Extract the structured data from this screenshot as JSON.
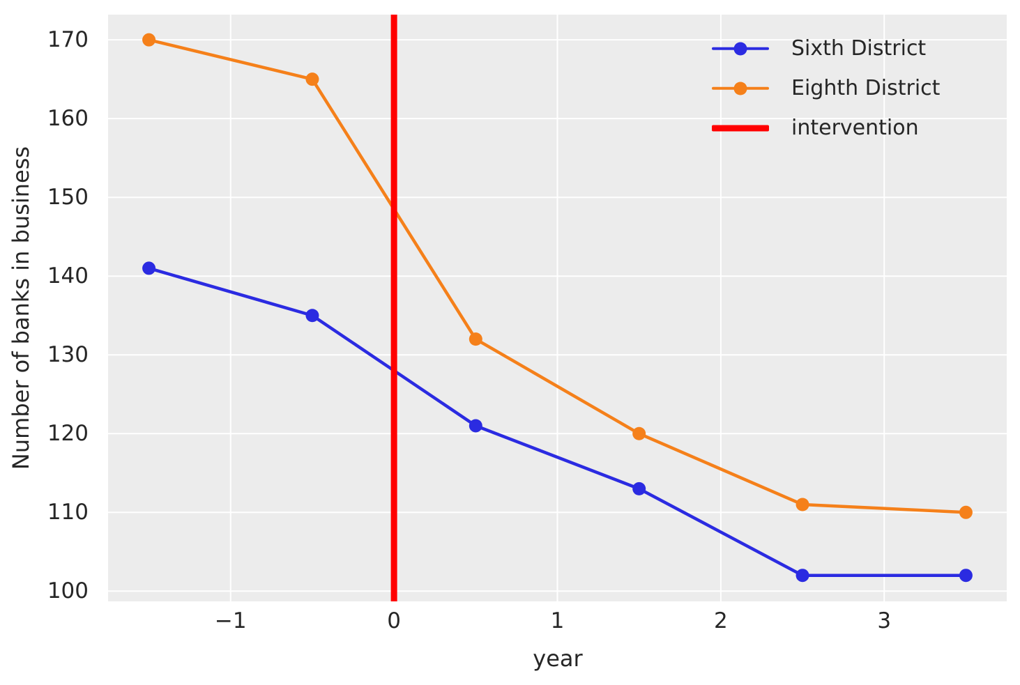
{
  "chart_data": {
    "type": "line",
    "title": "",
    "xlabel": "year",
    "ylabel": "Number of banks in business",
    "x": [
      -1.5,
      -0.5,
      0.5,
      1.5,
      2.5,
      3.5
    ],
    "series": [
      {
        "name": "Sixth District",
        "color": "#2b2be1",
        "values": [
          141,
          135,
          121,
          113,
          102,
          102
        ]
      },
      {
        "name": "Eighth District",
        "color": "#f5801a",
        "values": [
          170,
          165,
          132,
          120,
          111,
          110
        ]
      }
    ],
    "intervention": {
      "label": "intervention",
      "x": 0,
      "color": "#ff0000"
    },
    "xlim": [
      -1.75,
      3.75
    ],
    "ylim": [
      98.7,
      173.2
    ],
    "x_ticks": [
      {
        "value": -1,
        "label": "−1"
      },
      {
        "value": 0,
        "label": "0"
      },
      {
        "value": 1,
        "label": "1"
      },
      {
        "value": 2,
        "label": "2"
      },
      {
        "value": 3,
        "label": "3"
      }
    ],
    "y_ticks": [
      {
        "value": 100,
        "label": "100"
      },
      {
        "value": 110,
        "label": "110"
      },
      {
        "value": 120,
        "label": "120"
      },
      {
        "value": 130,
        "label": "130"
      },
      {
        "value": 140,
        "label": "140"
      },
      {
        "value": 150,
        "label": "150"
      },
      {
        "value": 160,
        "label": "160"
      },
      {
        "value": 170,
        "label": "170"
      }
    ],
    "grid": true,
    "legend_position": "upper right",
    "plot_bg": "#ececec",
    "grid_color": "#ffffff",
    "text_color": "#262626"
  }
}
